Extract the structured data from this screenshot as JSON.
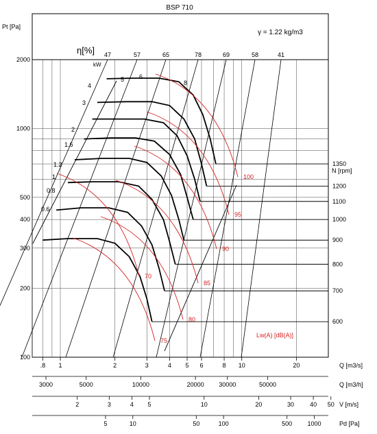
{
  "chart_data": {
    "type": "line",
    "title": "BSP 710",
    "density_label": "γ = 1.22 kg/m3",
    "efficiency_symbol": "η[%]",
    "efficiency_ticks": [
      "47",
      "57",
      "65",
      "78",
      "69",
      "58",
      "41"
    ],
    "y_axis": {
      "label": "Pt [Pa]",
      "scale": "log",
      "ylim": [
        100,
        2000
      ],
      "tick_labels": [
        "2000",
        "1000",
        "500",
        "400",
        "300",
        "200",
        "100"
      ]
    },
    "x_axes": [
      {
        "name": "Q [m3/s]",
        "scale": "log",
        "tick_labels": [
          ".8",
          "1",
          "2",
          "3",
          "4",
          "5",
          "6",
          "8",
          "10",
          "20"
        ]
      },
      {
        "name": "Q [m3/h]",
        "scale": "log",
        "tick_labels": [
          "3000",
          "5000",
          "10000",
          "20000",
          "30000",
          "50000"
        ]
      },
      {
        "name": "V [m/s]",
        "scale": "log",
        "tick_labels": [
          "2",
          "3",
          "4",
          "5",
          "10",
          "20",
          "30",
          "40",
          "50"
        ]
      },
      {
        "name": "Pd [Pa]",
        "scale": "log",
        "tick_labels": [
          "5",
          "10",
          "50",
          "100",
          "500",
          "1000"
        ]
      }
    ],
    "power_unit": "kW",
    "power_labels": [
      "4",
      "3",
      "2",
      "1.6",
      "1.2",
      "1",
      "0.8",
      "0.6"
    ],
    "power_mid_labels": [
      "5",
      "6",
      "8"
    ],
    "speed_label": "N [rpm]",
    "speed_labels": [
      "1350",
      "1200",
      "1100",
      "1000",
      "900",
      "800",
      "700",
      "600"
    ],
    "noise_labels": [
      "100",
      "95",
      "90",
      "85",
      "80",
      "75",
      "70"
    ],
    "noise_unit": "Lw(A) [dB(A)]",
    "fan_curves": [
      {
        "rpm": 1350,
        "points": [
          [
            1.8,
            1650
          ],
          [
            2.5,
            1660
          ],
          [
            3.5,
            1660
          ],
          [
            4.5,
            1600
          ],
          [
            5.4,
            1400
          ],
          [
            6.1,
            1150
          ],
          [
            6.7,
            900
          ],
          [
            7.2,
            700
          ]
        ]
      },
      {
        "rpm": 1200,
        "points": [
          [
            1.6,
            1300
          ],
          [
            2.3,
            1310
          ],
          [
            3.2,
            1310
          ],
          [
            4,
            1260
          ],
          [
            4.8,
            1100
          ],
          [
            5.5,
            900
          ],
          [
            6,
            700
          ],
          [
            6.4,
            560
          ]
        ]
      },
      {
        "rpm": 1100,
        "points": [
          [
            1.5,
            1100
          ],
          [
            2.1,
            1100
          ],
          [
            2.9,
            1100
          ],
          [
            3.7,
            1060
          ],
          [
            4.4,
            930
          ],
          [
            5,
            760
          ],
          [
            5.5,
            600
          ],
          [
            5.9,
            480
          ]
        ]
      },
      {
        "rpm": 1000,
        "points": [
          [
            1.35,
            900
          ],
          [
            1.9,
            910
          ],
          [
            2.6,
            910
          ],
          [
            3.3,
            880
          ],
          [
            4,
            770
          ],
          [
            4.6,
            630
          ],
          [
            5,
            500
          ],
          [
            5.4,
            400
          ]
        ]
      },
      {
        "rpm": 900,
        "points": [
          [
            1.2,
            730
          ],
          [
            1.7,
            740
          ],
          [
            2.4,
            740
          ],
          [
            3,
            710
          ],
          [
            3.6,
            620
          ],
          [
            4.1,
            510
          ],
          [
            4.5,
            400
          ],
          [
            4.8,
            325
          ]
        ]
      },
      {
        "rpm": 800,
        "points": [
          [
            1.1,
            580
          ],
          [
            1.5,
            585
          ],
          [
            2.1,
            585
          ],
          [
            2.7,
            560
          ],
          [
            3.2,
            490
          ],
          [
            3.7,
            400
          ],
          [
            4,
            320
          ],
          [
            4.3,
            255
          ]
        ]
      },
      {
        "rpm": 700,
        "points": [
          [
            0.95,
            440
          ],
          [
            1.3,
            450
          ],
          [
            1.85,
            450
          ],
          [
            2.35,
            430
          ],
          [
            2.8,
            375
          ],
          [
            3.2,
            310
          ],
          [
            3.5,
            245
          ],
          [
            3.75,
            195
          ]
        ]
      },
      {
        "rpm": 600,
        "points": [
          [
            0.8,
            325
          ],
          [
            1.1,
            330
          ],
          [
            1.6,
            330
          ],
          [
            2,
            315
          ],
          [
            2.4,
            275
          ],
          [
            2.75,
            225
          ],
          [
            3,
            180
          ],
          [
            3.2,
            143
          ]
        ]
      }
    ]
  }
}
